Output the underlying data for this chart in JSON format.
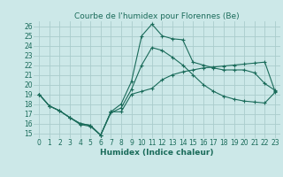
{
  "title": "Courbe de l'humidex pour Florennes (Be)",
  "xlabel": "Humidex (Indice chaleur)",
  "background_color": "#cce8e8",
  "grid_color": "#aacccc",
  "line_color": "#1a6b5a",
  "xlim": [
    -0.5,
    23.5
  ],
  "ylim": [
    14.5,
    26.5
  ],
  "xticks": [
    0,
    1,
    2,
    3,
    4,
    5,
    6,
    7,
    8,
    9,
    10,
    11,
    12,
    13,
    14,
    15,
    16,
    17,
    18,
    19,
    20,
    21,
    22,
    23
  ],
  "yticks": [
    15,
    16,
    17,
    18,
    19,
    20,
    21,
    22,
    23,
    24,
    25,
    26
  ],
  "line1_x": [
    0,
    1,
    2,
    3,
    4,
    5,
    6,
    7,
    8,
    9,
    10,
    11,
    12,
    13,
    14,
    15,
    16,
    17,
    18,
    19,
    20,
    21,
    22,
    23
  ],
  "line1_y": [
    19.0,
    17.8,
    17.3,
    16.6,
    16.0,
    15.8,
    14.8,
    17.2,
    17.2,
    19.0,
    19.3,
    19.6,
    20.5,
    21.0,
    21.3,
    21.5,
    21.7,
    21.8,
    21.9,
    22.0,
    22.1,
    22.2,
    22.3,
    19.3
  ],
  "line2_x": [
    0,
    1,
    2,
    3,
    4,
    5,
    6,
    7,
    8,
    9,
    10,
    11,
    12,
    13,
    14,
    15,
    16,
    17,
    18,
    19,
    20,
    21,
    22,
    23
  ],
  "line2_y": [
    19.0,
    17.8,
    17.3,
    16.6,
    16.0,
    15.8,
    14.8,
    17.2,
    18.0,
    20.3,
    25.0,
    26.2,
    25.0,
    24.7,
    24.6,
    22.3,
    22.0,
    21.7,
    21.5,
    21.5,
    21.5,
    21.2,
    20.1,
    19.4
  ],
  "line3_x": [
    0,
    1,
    2,
    3,
    4,
    5,
    6,
    7,
    8,
    9,
    10,
    11,
    12,
    13,
    14,
    15,
    16,
    17,
    18,
    19,
    20,
    21,
    22,
    23
  ],
  "line3_y": [
    19.0,
    17.8,
    17.3,
    16.6,
    15.9,
    15.7,
    14.8,
    17.1,
    17.6,
    19.5,
    22.0,
    23.8,
    23.5,
    22.8,
    22.0,
    21.0,
    20.0,
    19.3,
    18.8,
    18.5,
    18.3,
    18.2,
    18.1,
    19.2
  ],
  "title_fontsize": 6.5,
  "tick_fontsize": 5.5,
  "xlabel_fontsize": 6.5
}
